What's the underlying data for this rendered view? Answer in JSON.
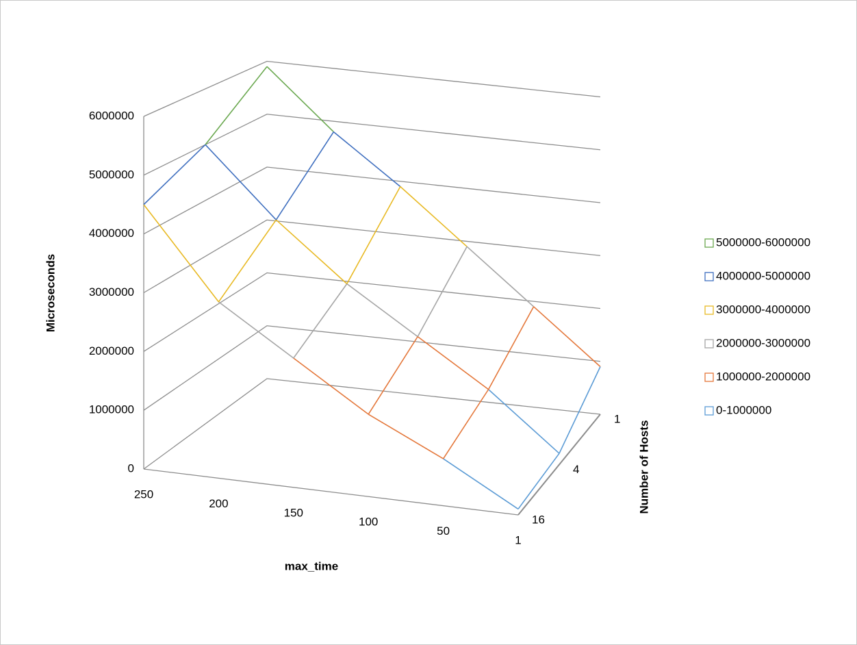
{
  "chart_data": {
    "type": "surface3d",
    "x_title": "max_time",
    "y_title": "Microseconds",
    "depth_title": "Number of Hosts",
    "categories": [
      "250",
      "200",
      "150",
      "100",
      "50",
      "1"
    ],
    "series": [
      {
        "name": "16",
        "values": [
          4500000,
          3000000,
          2200000,
          1400000,
          800000,
          100000
        ]
      },
      {
        "name": "4",
        "values": [
          5000000,
          3800000,
          2800000,
          2000000,
          1200000,
          200000
        ]
      },
      {
        "name": "1",
        "values": [
          5900000,
          4800000,
          3900000,
          2900000,
          1900000,
          900000
        ]
      }
    ],
    "ylim": [
      0,
      6000000
    ],
    "yticks": [
      0,
      1000000,
      2000000,
      3000000,
      4000000,
      5000000,
      6000000
    ],
    "legend": [
      {
        "label": "5000000-6000000",
        "color": "#6aa84f"
      },
      {
        "label": "4000000-5000000",
        "color": "#3f6fbf"
      },
      {
        "label": "3000000-4000000",
        "color": "#e8b923"
      },
      {
        "label": "2000000-3000000",
        "color": "#a5a5a5"
      },
      {
        "label": "1000000-2000000",
        "color": "#e4773a"
      },
      {
        "label": "0-1000000",
        "color": "#5b9bd5"
      }
    ],
    "legend_position": "right",
    "grid": true
  }
}
